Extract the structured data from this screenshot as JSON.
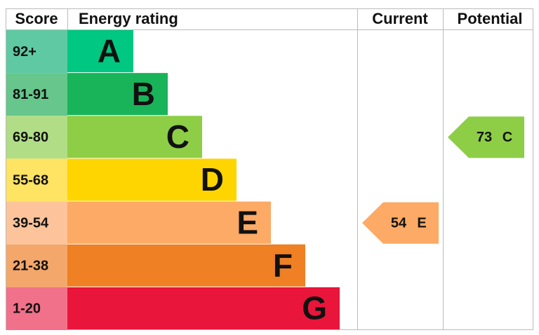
{
  "header": {
    "score": "Score",
    "rating": "Energy rating",
    "current": "Current",
    "potential": "Potential"
  },
  "bands": [
    {
      "score": "92+",
      "letter": "A",
      "color": "#00c781",
      "score_color": "#5fc9a3"
    },
    {
      "score": "81-91",
      "letter": "B",
      "color": "#19b459",
      "score_color": "#66c68b"
    },
    {
      "score": "69-80",
      "letter": "C",
      "color": "#8dce46",
      "score_color": "#b1dd87"
    },
    {
      "score": "55-68",
      "letter": "D",
      "color": "#ffd500",
      "score_color": "#ffe362"
    },
    {
      "score": "39-54",
      "letter": "E",
      "color": "#fcaa65",
      "score_color": "#fdc49b"
    },
    {
      "score": "21-38",
      "letter": "F",
      "color": "#ef8023",
      "score_color": "#f4a76a"
    },
    {
      "score": "1-20",
      "letter": "G",
      "color": "#e9153b",
      "score_color": "#f1718a"
    }
  ],
  "current": {
    "value": 54,
    "letter": "E"
  },
  "potential": {
    "value": 73,
    "letter": "C"
  }
}
